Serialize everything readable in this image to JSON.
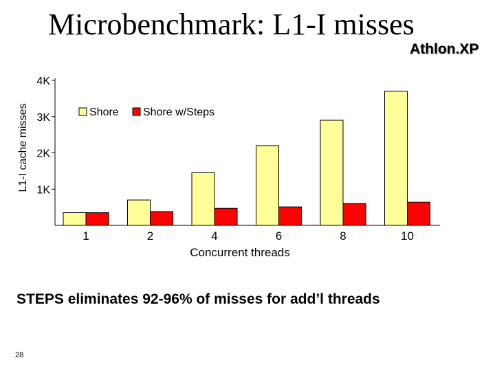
{
  "slide": {
    "title": "Microbenchmark: L1-I misses",
    "subtitle": "Athlon.XP",
    "caption": "STEPS eliminates 92-96% of misses for add’l threads",
    "page_number": "28"
  },
  "chart_data": {
    "type": "bar",
    "title": "",
    "xlabel": "Concurrent threads",
    "ylabel": "L1-I cache misses",
    "categories": [
      "1",
      "2",
      "4",
      "6",
      "8",
      "10"
    ],
    "series": [
      {
        "name": "Shore",
        "values": [
          350,
          700,
          1450,
          2200,
          2900,
          3700
        ],
        "color": "#ffff99"
      },
      {
        "name": "Shore w/Steps",
        "values": [
          350,
          380,
          470,
          510,
          600,
          640
        ],
        "color": "#ff0000"
      }
    ],
    "ylim": [
      0,
      4000
    ],
    "yticks": [
      1000,
      2000,
      3000,
      4000
    ],
    "ytick_labels": [
      "1K",
      "2K",
      "3K",
      "4K"
    ],
    "grid": false,
    "legend_position": "top-left"
  }
}
